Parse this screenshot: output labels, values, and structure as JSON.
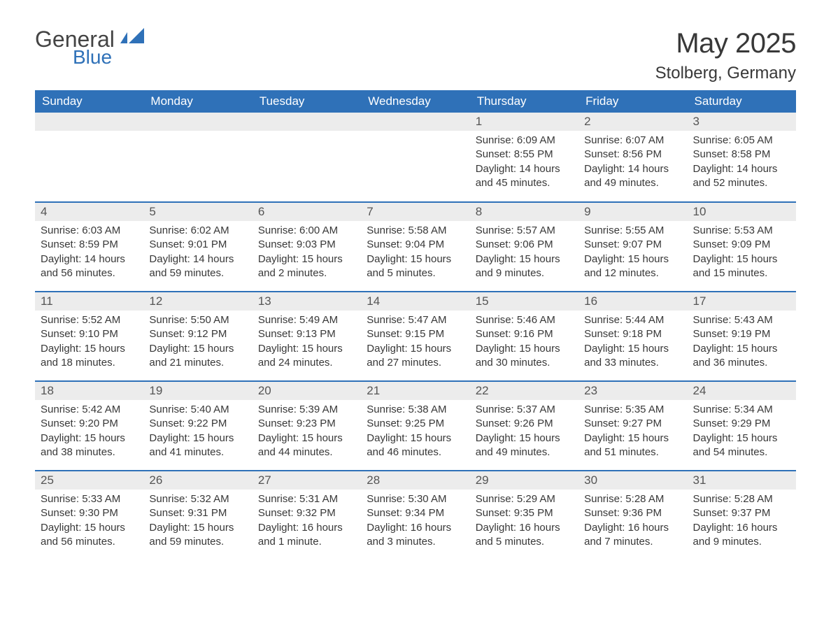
{
  "brand": {
    "general": "General",
    "blue": "Blue"
  },
  "title": "May 2025",
  "location": "Stolberg, Germany",
  "colors": {
    "header_bg": "#2f71b8",
    "header_text": "#ffffff",
    "daynum_bg": "#ececec",
    "row_border": "#2f71b8",
    "body_text": "#383838",
    "page_bg": "#ffffff"
  },
  "typography": {
    "title_fontsize": 40,
    "location_fontsize": 24,
    "header_fontsize": 17,
    "daynum_fontsize": 17,
    "body_fontsize": 15
  },
  "layout": {
    "columns": 7,
    "rows": 5,
    "first_weekday_index": 4
  },
  "weekdays": [
    "Sunday",
    "Monday",
    "Tuesday",
    "Wednesday",
    "Thursday",
    "Friday",
    "Saturday"
  ],
  "days": [
    {
      "n": 1,
      "sunrise": "6:09 AM",
      "sunset": "8:55 PM",
      "daylight": "14 hours and 45 minutes."
    },
    {
      "n": 2,
      "sunrise": "6:07 AM",
      "sunset": "8:56 PM",
      "daylight": "14 hours and 49 minutes."
    },
    {
      "n": 3,
      "sunrise": "6:05 AM",
      "sunset": "8:58 PM",
      "daylight": "14 hours and 52 minutes."
    },
    {
      "n": 4,
      "sunrise": "6:03 AM",
      "sunset": "8:59 PM",
      "daylight": "14 hours and 56 minutes."
    },
    {
      "n": 5,
      "sunrise": "6:02 AM",
      "sunset": "9:01 PM",
      "daylight": "14 hours and 59 minutes."
    },
    {
      "n": 6,
      "sunrise": "6:00 AM",
      "sunset": "9:03 PM",
      "daylight": "15 hours and 2 minutes."
    },
    {
      "n": 7,
      "sunrise": "5:58 AM",
      "sunset": "9:04 PM",
      "daylight": "15 hours and 5 minutes."
    },
    {
      "n": 8,
      "sunrise": "5:57 AM",
      "sunset": "9:06 PM",
      "daylight": "15 hours and 9 minutes."
    },
    {
      "n": 9,
      "sunrise": "5:55 AM",
      "sunset": "9:07 PM",
      "daylight": "15 hours and 12 minutes."
    },
    {
      "n": 10,
      "sunrise": "5:53 AM",
      "sunset": "9:09 PM",
      "daylight": "15 hours and 15 minutes."
    },
    {
      "n": 11,
      "sunrise": "5:52 AM",
      "sunset": "9:10 PM",
      "daylight": "15 hours and 18 minutes."
    },
    {
      "n": 12,
      "sunrise": "5:50 AM",
      "sunset": "9:12 PM",
      "daylight": "15 hours and 21 minutes."
    },
    {
      "n": 13,
      "sunrise": "5:49 AM",
      "sunset": "9:13 PM",
      "daylight": "15 hours and 24 minutes."
    },
    {
      "n": 14,
      "sunrise": "5:47 AM",
      "sunset": "9:15 PM",
      "daylight": "15 hours and 27 minutes."
    },
    {
      "n": 15,
      "sunrise": "5:46 AM",
      "sunset": "9:16 PM",
      "daylight": "15 hours and 30 minutes."
    },
    {
      "n": 16,
      "sunrise": "5:44 AM",
      "sunset": "9:18 PM",
      "daylight": "15 hours and 33 minutes."
    },
    {
      "n": 17,
      "sunrise": "5:43 AM",
      "sunset": "9:19 PM",
      "daylight": "15 hours and 36 minutes."
    },
    {
      "n": 18,
      "sunrise": "5:42 AM",
      "sunset": "9:20 PM",
      "daylight": "15 hours and 38 minutes."
    },
    {
      "n": 19,
      "sunrise": "5:40 AM",
      "sunset": "9:22 PM",
      "daylight": "15 hours and 41 minutes."
    },
    {
      "n": 20,
      "sunrise": "5:39 AM",
      "sunset": "9:23 PM",
      "daylight": "15 hours and 44 minutes."
    },
    {
      "n": 21,
      "sunrise": "5:38 AM",
      "sunset": "9:25 PM",
      "daylight": "15 hours and 46 minutes."
    },
    {
      "n": 22,
      "sunrise": "5:37 AM",
      "sunset": "9:26 PM",
      "daylight": "15 hours and 49 minutes."
    },
    {
      "n": 23,
      "sunrise": "5:35 AM",
      "sunset": "9:27 PM",
      "daylight": "15 hours and 51 minutes."
    },
    {
      "n": 24,
      "sunrise": "5:34 AM",
      "sunset": "9:29 PM",
      "daylight": "15 hours and 54 minutes."
    },
    {
      "n": 25,
      "sunrise": "5:33 AM",
      "sunset": "9:30 PM",
      "daylight": "15 hours and 56 minutes."
    },
    {
      "n": 26,
      "sunrise": "5:32 AM",
      "sunset": "9:31 PM",
      "daylight": "15 hours and 59 minutes."
    },
    {
      "n": 27,
      "sunrise": "5:31 AM",
      "sunset": "9:32 PM",
      "daylight": "16 hours and 1 minute."
    },
    {
      "n": 28,
      "sunrise": "5:30 AM",
      "sunset": "9:34 PM",
      "daylight": "16 hours and 3 minutes."
    },
    {
      "n": 29,
      "sunrise": "5:29 AM",
      "sunset": "9:35 PM",
      "daylight": "16 hours and 5 minutes."
    },
    {
      "n": 30,
      "sunrise": "5:28 AM",
      "sunset": "9:36 PM",
      "daylight": "16 hours and 7 minutes."
    },
    {
      "n": 31,
      "sunrise": "5:28 AM",
      "sunset": "9:37 PM",
      "daylight": "16 hours and 9 minutes."
    }
  ],
  "labels": {
    "sunrise": "Sunrise:",
    "sunset": "Sunset:",
    "daylight": "Daylight:"
  }
}
